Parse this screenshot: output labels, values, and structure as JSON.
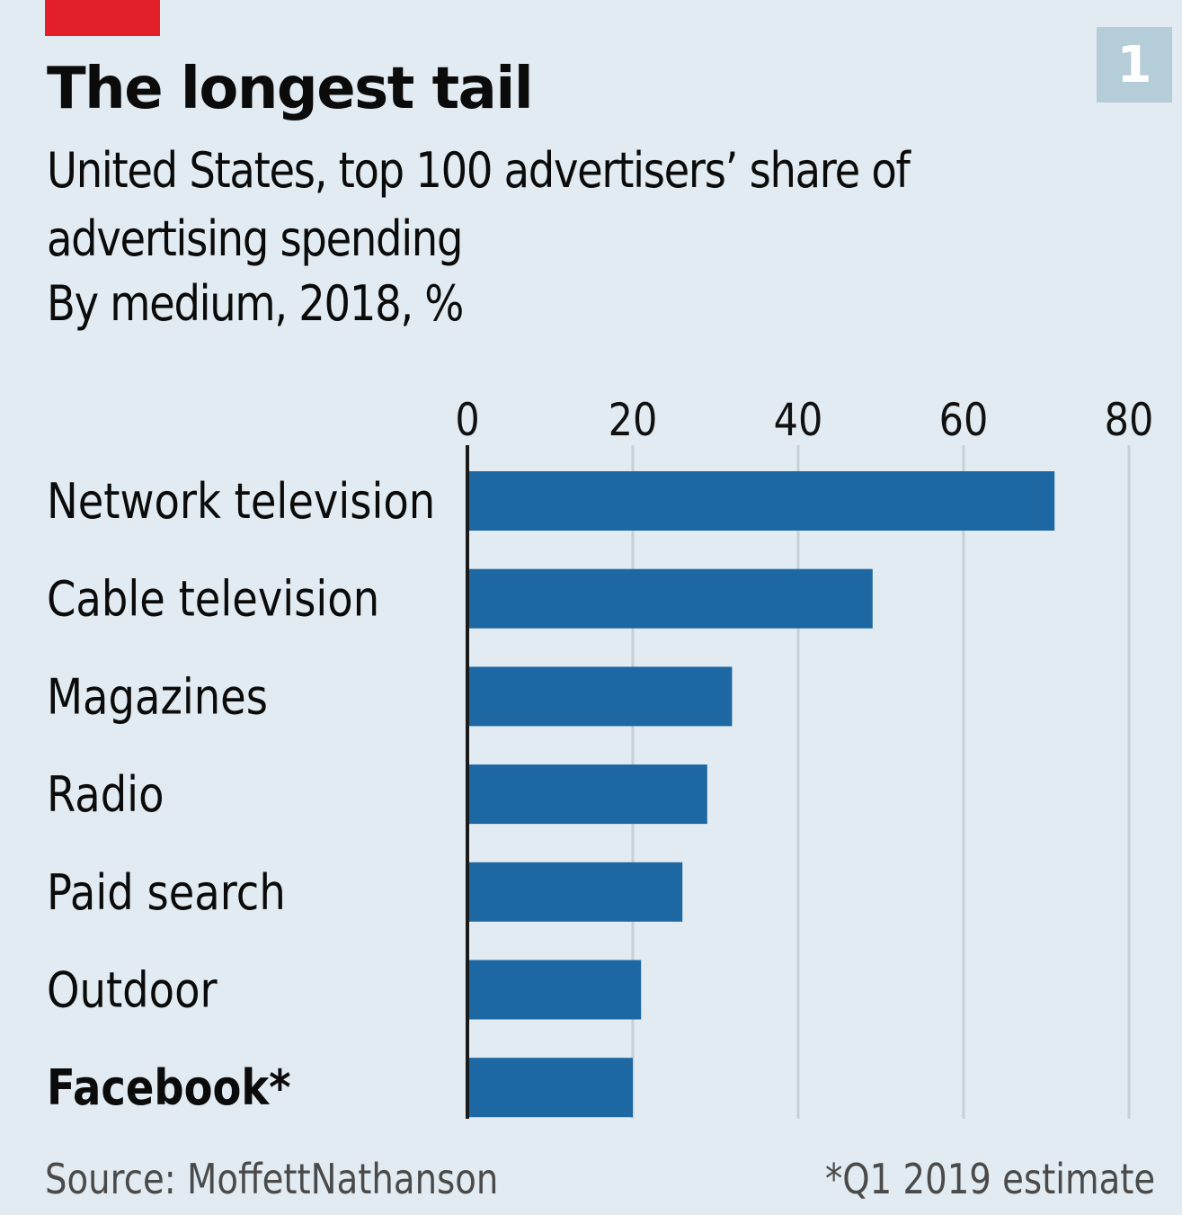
{
  "header": {
    "badge": "1",
    "title": "The longest tail",
    "subtitle": "United States, top 100 advertisers’ share of advertising spending",
    "units": "By medium, 2018, %"
  },
  "footer": {
    "source": "Source: MoffettNathanson",
    "note": "*Q1 2019 estimate"
  },
  "colors": {
    "background": "#e1ebf1",
    "bar": "#1d67a3",
    "gridline": "#c5d0d8",
    "axis": "#1a1a1a",
    "accent_tag": "#e3202a",
    "badge": "#b5ccd9"
  },
  "chart_data": {
    "type": "bar",
    "orientation": "horizontal",
    "title": "The longest tail",
    "subtitle": "United States, top 100 advertisers’ share of advertising spending",
    "xlabel": "By medium, 2018, %",
    "ylabel": "",
    "categories": [
      "Network television",
      "Cable television",
      "Magazines",
      "Radio",
      "Paid search",
      "Outdoor",
      "Facebook*"
    ],
    "bold_categories": [
      "Facebook*"
    ],
    "values": [
      71,
      49,
      32,
      29,
      26,
      21,
      20
    ],
    "xlim": [
      0,
      80
    ],
    "xticks": [
      0,
      20,
      40,
      60,
      80
    ],
    "xtick_labels": [
      "0",
      "20",
      "40",
      "60",
      "80"
    ],
    "axis_position": "top",
    "grid": true,
    "legend": "none",
    "source": "Source: MoffettNathanson",
    "footnote": "*Q1 2019 estimate"
  }
}
